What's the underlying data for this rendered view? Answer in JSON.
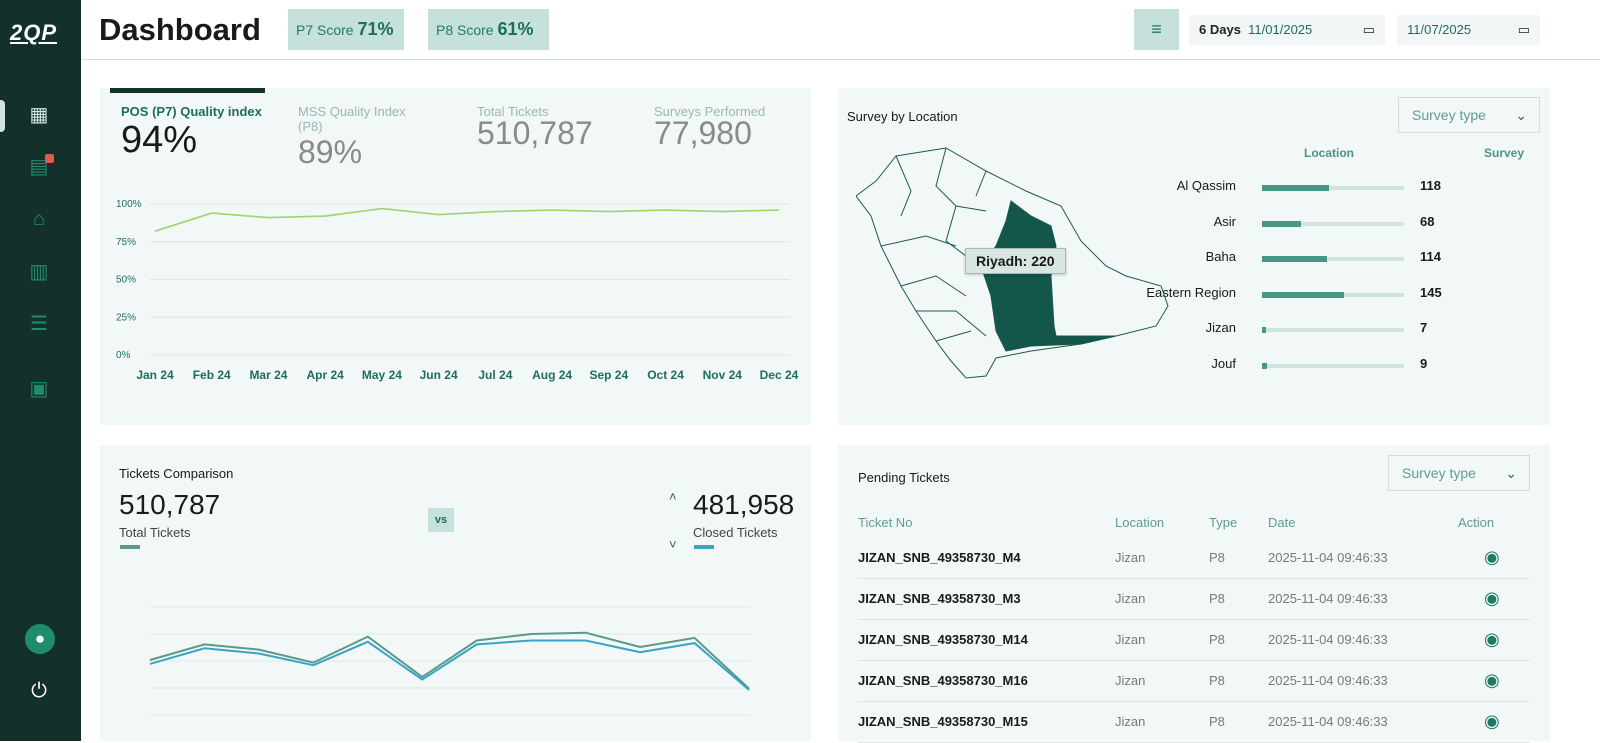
{
  "app": {
    "logo": "2QP"
  },
  "sidebar": {
    "items": [
      {
        "icon": "dashboard-icon",
        "active": true
      },
      {
        "icon": "ticket-icon",
        "badge_color": "#e8574a"
      },
      {
        "icon": "store-icon"
      },
      {
        "icon": "building-icon"
      },
      {
        "icon": "list-icon"
      },
      {
        "icon": "clipboard-icon"
      }
    ],
    "bottom": [
      {
        "icon": "user-avatar-icon"
      },
      {
        "icon": "power-icon"
      }
    ]
  },
  "header": {
    "title": "Dashboard",
    "p7_label": "P7 Score",
    "p7_value": "71%",
    "p8_label": "P8 Score",
    "p8_value": "61%",
    "days": "6 Days",
    "date_from": "11/01/2025",
    "date_to": "11/07/2025"
  },
  "quality": {
    "kpis": [
      {
        "label": "POS (P7) Quality index",
        "value": "94%"
      },
      {
        "label": "MSS Quality Index (P8)",
        "value": "89%"
      },
      {
        "label": "Total Tickets",
        "value": "510,787"
      },
      {
        "label": "Surveys Performed",
        "value": "77,980"
      }
    ]
  },
  "chart_data": [
    {
      "type": "line",
      "categories": [
        "Jan 24",
        "Feb 24",
        "Mar 24",
        "Apr 24",
        "May 24",
        "Jun 24",
        "Jul 24",
        "Aug 24",
        "Sep 24",
        "Oct 24",
        "Nov 24",
        "Dec 24"
      ],
      "yticks": [
        "0%",
        "25%",
        "50%",
        "75%",
        "100%"
      ],
      "ylim": [
        0,
        100
      ],
      "grid": true,
      "series": [
        {
          "values": [
            82,
            94,
            91,
            92,
            97,
            93,
            95,
            96,
            95,
            96,
            95,
            96
          ],
          "color": "#9fd46a"
        }
      ]
    },
    {
      "type": "line",
      "grid": true,
      "series": [
        {
          "name": "Total Tickets",
          "color": "#5a9a88",
          "values": [
            50,
            62,
            58,
            48,
            68,
            37,
            65,
            70,
            71,
            60,
            67,
            28
          ]
        },
        {
          "name": "Closed Tickets",
          "color": "#3aa3c8",
          "values": [
            47,
            59,
            55,
            46,
            64,
            35,
            62,
            65,
            65,
            56,
            63,
            27
          ]
        }
      ]
    }
  ],
  "survey": {
    "title": "Survey by Location",
    "dropdown": "Survey type",
    "col_location": "Location",
    "col_survey": "Survey",
    "tooltip": "Riyadh: 220",
    "rows": [
      {
        "name": "Al Qassim",
        "value": 118
      },
      {
        "name": "Asir",
        "value": 68
      },
      {
        "name": "Baha",
        "value": 114
      },
      {
        "name": "Eastern Region",
        "value": 145
      },
      {
        "name": "Jizan",
        "value": 7
      },
      {
        "name": "Jouf",
        "value": 9
      }
    ]
  },
  "comparison": {
    "title": "Tickets Comparison",
    "total": "510,787",
    "total_label": "Total Tickets",
    "vs": "vs",
    "closed": "481,958",
    "closed_label": "Closed Tickets"
  },
  "pending": {
    "title": "Pending Tickets",
    "dropdown": "Survey type",
    "headers": [
      "Ticket No",
      "Location",
      "Type",
      "Date",
      "Action"
    ],
    "rows": [
      [
        "JIZAN_SNB_49358730_M4",
        "Jizan",
        "P8",
        "2025-11-04 09:46:33"
      ],
      [
        "JIZAN_SNB_49358730_M3",
        "Jizan",
        "P8",
        "2025-11-04 09:46:33"
      ],
      [
        "JIZAN_SNB_49358730_M14",
        "Jizan",
        "P8",
        "2025-11-04 09:46:33"
      ],
      [
        "JIZAN_SNB_49358730_M16",
        "Jizan",
        "P8",
        "2025-11-04 09:46:33"
      ],
      [
        "JIZAN_SNB_49358730_M15",
        "Jizan",
        "P8",
        "2025-11-04 09:46:33"
      ]
    ]
  }
}
